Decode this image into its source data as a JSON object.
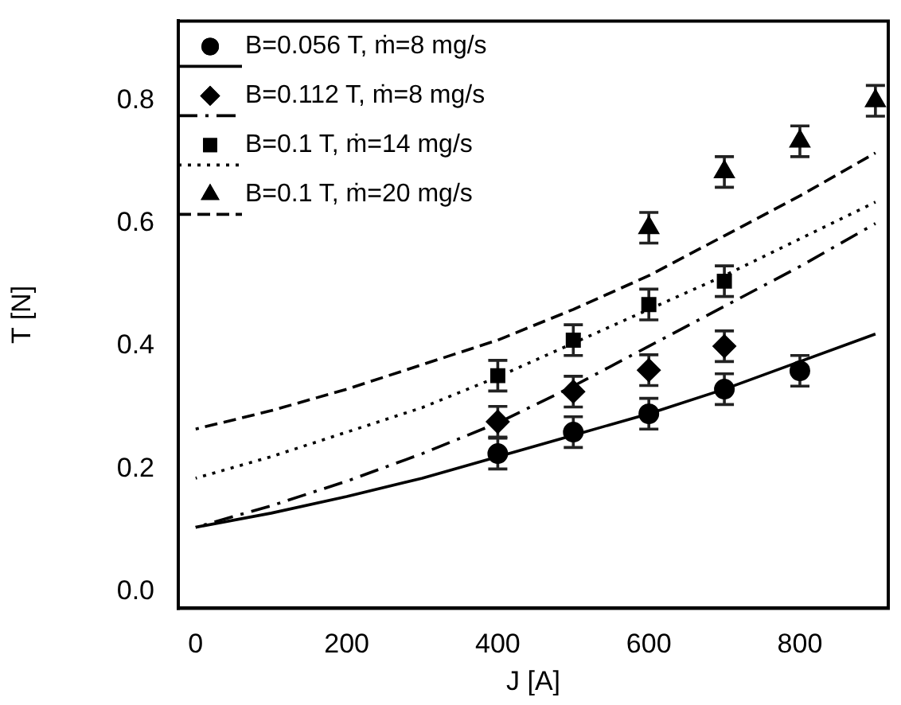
{
  "chart_data": {
    "type": "scatter",
    "xlabel": "J [A]",
    "ylabel": "T [N]",
    "xlim": [
      -23,
      917
    ],
    "ylim": [
      -0.027,
      0.93
    ],
    "xticks": [
      0,
      200,
      400,
      600,
      800
    ],
    "yticks": [
      {
        "value": 0,
        "label": "0.0"
      },
      {
        "value": 0.2,
        "label": "0.2"
      },
      {
        "value": 0.4,
        "label": "0.4"
      },
      {
        "value": 0.6,
        "label": "0.6"
      },
      {
        "value": 0.8,
        "label": "0.8"
      }
    ],
    "grid": false,
    "legend": "top left",
    "series": [
      {
        "name": "B=0.056 T, ṁ=8 mg/s",
        "color": "#000000",
        "marker": "circle",
        "x": [
          400,
          500,
          600,
          700,
          800
        ],
        "values": [
          0.225,
          0.26,
          0.29,
          0.33,
          0.36
        ],
        "errors": [
          0.025,
          0.025,
          0.025,
          0.025,
          0.025
        ]
      },
      {
        "type": "line",
        "color": "#000000",
        "marker": "none",
        "line_style": "solid",
        "x": [
          0,
          100,
          200,
          300,
          400,
          500,
          600,
          700,
          800,
          900
        ],
        "values": [
          0.105,
          0.128,
          0.155,
          0.185,
          0.22,
          0.255,
          0.29,
          0.33,
          0.375,
          0.42
        ]
      },
      {
        "name": "B=0.112 T, ṁ=8 mg/s",
        "color": "#000000",
        "marker": "diamond",
        "x": [
          400,
          500,
          600,
          700
        ],
        "values": [
          0.277,
          0.326,
          0.361,
          0.4
        ],
        "errors": [
          0.025,
          0.025,
          0.025,
          0.025
        ]
      },
      {
        "type": "line",
        "color": "#000000",
        "marker": "none",
        "line_style": "dashdot",
        "x": [
          0,
          100,
          200,
          300,
          400,
          500,
          600,
          700,
          800,
          900
        ],
        "values": [
          0.105,
          0.14,
          0.18,
          0.225,
          0.275,
          0.335,
          0.4,
          0.465,
          0.53,
          0.6
        ]
      },
      {
        "name": "B=0.1 T, ṁ=14 mg/s",
        "color": "#000000",
        "marker": "square",
        "x": [
          400,
          500,
          600,
          700
        ],
        "values": [
          0.352,
          0.41,
          0.468,
          0.506
        ],
        "errors": [
          0.025,
          0.025,
          0.025,
          0.025
        ]
      },
      {
        "type": "line",
        "color": "#000000",
        "marker": "none",
        "line_style": "dotted",
        "x": [
          0,
          100,
          200,
          300,
          400,
          500,
          600,
          700,
          800,
          900
        ],
        "values": [
          0.185,
          0.22,
          0.26,
          0.3,
          0.35,
          0.405,
          0.46,
          0.515,
          0.575,
          0.635
        ]
      },
      {
        "name": "B=0.1 T, ṁ=20 mg/s",
        "color": "#000000",
        "marker": "triangle",
        "x": [
          600,
          700,
          800,
          900
        ],
        "values": [
          0.593,
          0.684,
          0.734,
          0.8
        ],
        "errors": [
          0.025,
          0.025,
          0.025,
          0.025
        ]
      },
      {
        "type": "line",
        "color": "#000000",
        "marker": "none",
        "line_style": "dashed",
        "x": [
          0,
          100,
          200,
          300,
          400,
          500,
          600,
          700,
          800,
          900
        ],
        "values": [
          0.265,
          0.295,
          0.33,
          0.37,
          0.41,
          0.46,
          0.515,
          0.58,
          0.645,
          0.715
        ]
      }
    ]
  }
}
